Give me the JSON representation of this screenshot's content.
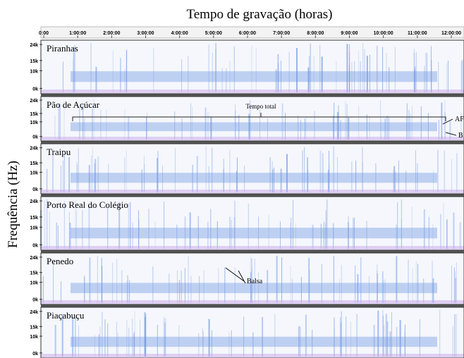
{
  "title": "Tempo de gravação (horas)",
  "y_label": "Frequência (Hz)",
  "time_ticks": [
    "0:00",
    "1:00:00",
    "2:00:00",
    "3:00:00",
    "4:00:00",
    "5:00:00",
    "6:00:00",
    "7:00:00",
    "8:00:00",
    "9:00:00",
    "10:00:00",
    "11:00:00",
    "12:00:00"
  ],
  "freq_ticks": [
    "24k",
    "15k",
    "10k",
    "0k"
  ],
  "panels": [
    {
      "name": "Piranhas"
    },
    {
      "name": "Pão de Açúcar"
    },
    {
      "name": "Traipu"
    },
    {
      "name": "Porto Real do Colégio"
    },
    {
      "name": "Penedo"
    },
    {
      "name": "Piaçabuçu"
    }
  ],
  "annotations": {
    "total": "Tempo total",
    "af": "AF",
    "b": "B",
    "balsa": "Balsa"
  }
}
